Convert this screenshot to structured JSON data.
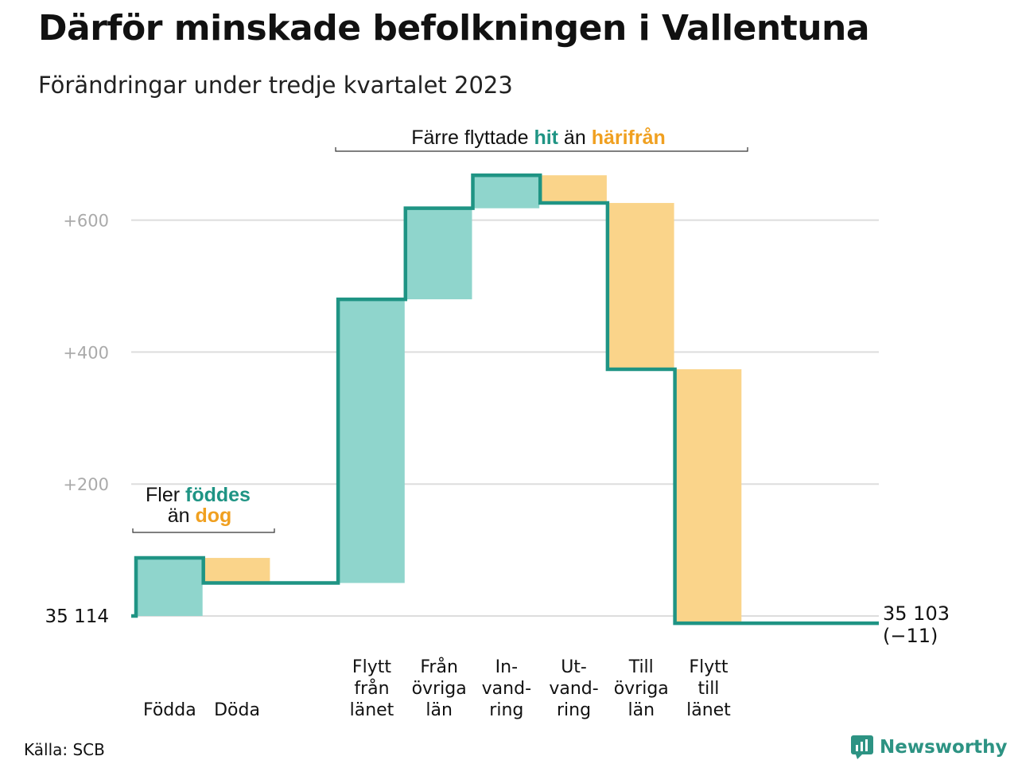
{
  "title": "Därför minskade befolkningen i Vallentuna",
  "subtitle": "Förändringar under tredje kvartalet 2023",
  "source": "Källa: SCB",
  "brand": "Newsworthy",
  "colors": {
    "in": "#8fd5cc",
    "out": "#fad48a",
    "line": "#1f9484",
    "grid": "#dddddd",
    "axis_text": "#aaaaaa",
    "teal_text": "#1f9484",
    "orange_text": "#f0a020"
  },
  "annotations": {
    "migration": {
      "prefix": "Färre flyttade",
      "hit": "hit",
      "mid": "än",
      "harifran": "härifrån"
    },
    "natural": {
      "line1_prefix": "Fler",
      "line1_em": "föddes",
      "line2_prefix": "än",
      "line2_em": "dog"
    }
  },
  "chart_data": {
    "type": "waterfall",
    "start_label": "35  114",
    "end_label": "35 103",
    "end_change": "(−11)",
    "start_value": 35114,
    "end_value": 35103,
    "yticks": [
      {
        "value": 200,
        "label": "+200"
      },
      {
        "value": 400,
        "label": "+400"
      },
      {
        "value": 600,
        "label": "+600"
      }
    ],
    "ylim": [
      -15,
      720
    ],
    "categories": [
      {
        "label": [
          "Födda"
        ],
        "change": 88,
        "kind": "in"
      },
      {
        "label": [
          "Döda"
        ],
        "change": -38,
        "kind": "out"
      },
      {
        "label": [],
        "change": 0,
        "kind": "gap"
      },
      {
        "label": [
          "Flytt",
          "från",
          "länet"
        ],
        "change": 430,
        "kind": "in"
      },
      {
        "label": [
          "Från",
          "övriga",
          "län"
        ],
        "change": 138,
        "kind": "in"
      },
      {
        "label": [
          "In-",
          "vand-",
          "ring"
        ],
        "change": 50,
        "kind": "in"
      },
      {
        "label": [
          "Ut-",
          "vand-",
          "ring"
        ],
        "change": -42,
        "kind": "out"
      },
      {
        "label": [
          "Till",
          "övriga",
          "län"
        ],
        "change": -252,
        "kind": "out"
      },
      {
        "label": [
          "Flytt",
          "till",
          "länet"
        ],
        "change": -385,
        "kind": "out"
      }
    ]
  }
}
